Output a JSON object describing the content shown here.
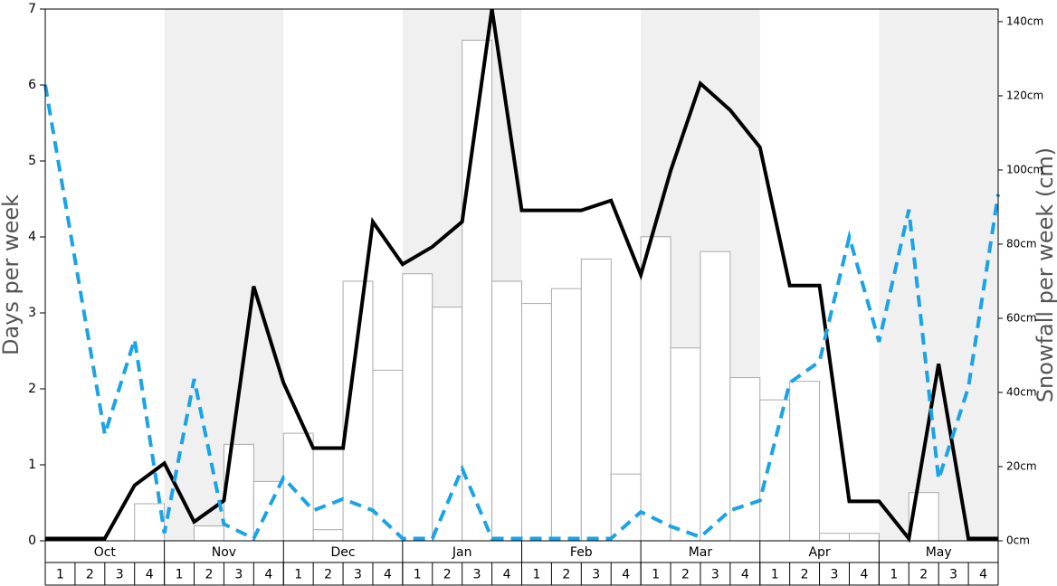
{
  "chart_data": {
    "type": "combo",
    "y_label": "Days per week",
    "y2_label": "Snowfall per week (cm)",
    "months": [
      "Oct",
      "Nov",
      "Dec",
      "Jan",
      "Feb",
      "Mar",
      "Apr",
      "May"
    ],
    "categories": [
      "1",
      "2",
      "3",
      "4",
      "1",
      "2",
      "3",
      "4",
      "1",
      "2",
      "3",
      "4",
      "1",
      "2",
      "3",
      "4",
      "1",
      "2",
      "3",
      "4",
      "1",
      "2",
      "3",
      "4",
      "1",
      "2",
      "3",
      "4",
      "1",
      "2",
      "3",
      "4"
    ],
    "x": [
      0,
      1,
      2,
      3,
      4,
      5,
      6,
      7,
      8,
      9,
      10,
      11,
      12,
      13,
      14,
      15,
      16,
      17,
      18,
      19,
      20,
      21,
      22,
      23,
      24,
      25,
      26,
      27,
      28,
      29,
      30,
      31,
      32
    ],
    "xlim": [
      0,
      32
    ],
    "ylim": [
      0,
      7
    ],
    "yticks": [
      0,
      1,
      2,
      3,
      4,
      5,
      6,
      7
    ],
    "y2lim": [
      0,
      143.4
    ],
    "y2ticks": [
      {
        "value": 0,
        "label": "0cm"
      },
      {
        "value": 20,
        "label": "20cm"
      },
      {
        "value": 40,
        "label": "40cm"
      },
      {
        "value": 60,
        "label": "60cm"
      },
      {
        "value": 80,
        "label": "80cm"
      },
      {
        "value": 100,
        "label": "100cm"
      },
      {
        "value": 120,
        "label": "120cm"
      },
      {
        "value": 140,
        "label": "140cm"
      }
    ],
    "series": [
      {
        "type": "bar",
        "axis": "y2",
        "color": "#ffffff",
        "values": [
          0,
          0,
          0,
          10,
          0,
          4,
          26,
          16,
          29,
          3,
          70,
          46,
          72,
          63,
          135,
          70,
          64,
          68,
          76,
          18,
          82,
          52,
          78,
          44,
          38,
          43,
          2,
          2,
          0,
          13,
          0,
          0
        ]
      },
      {
        "type": "line",
        "color": "#000000",
        "dashed": false,
        "values": [
          0.03,
          0.03,
          0.03,
          0.73,
          1.02,
          0.25,
          0.53,
          3.35,
          2.08,
          1.22,
          1.22,
          4.2,
          3.64,
          3.87,
          4.2,
          7.0,
          4.35,
          4.35,
          4.35,
          4.48,
          3.5,
          4.87,
          6.02,
          5.67,
          5.18,
          3.36,
          3.36,
          0.52,
          0.52,
          0.03,
          2.33,
          0.03,
          0.03
        ]
      },
      {
        "type": "line",
        "color": "#1aa3e6",
        "dashed": true,
        "values": [
          6.0,
          3.7,
          1.4,
          2.65,
          0.1,
          2.13,
          0.22,
          0.03,
          0.83,
          0.4,
          0.55,
          0.4,
          0.03,
          0.03,
          0.95,
          0.03,
          0.03,
          0.03,
          0.03,
          0.03,
          0.38,
          0.19,
          0.05,
          0.4,
          0.53,
          2.08,
          2.36,
          4.0,
          2.62,
          4.36,
          0.81,
          2.02,
          4.56
        ]
      }
    ]
  }
}
